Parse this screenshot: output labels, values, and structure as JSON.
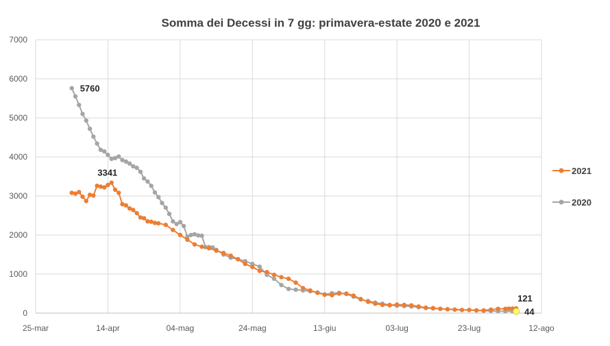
{
  "chart_data": {
    "type": "line",
    "title": "Somma dei Decessi in 7 gg: primavera-estate 2020 e 2021",
    "xlabel": "",
    "ylabel": "",
    "x_ticks": [
      "25-mar",
      "14-apr",
      "04-mag",
      "24-mag",
      "13-giu",
      "03-lug",
      "23-lug",
      "12-ago"
    ],
    "y_ticks": [
      0,
      1000,
      2000,
      3000,
      4000,
      5000,
      6000,
      7000
    ],
    "ylim": [
      0,
      7000
    ],
    "grid": "vertical and horizontal",
    "legend_position": "right",
    "x_unit": "day offset from 25-mar (tick every 20 days)",
    "xlim": [
      0,
      140
    ],
    "series": [
      {
        "name": "2021",
        "color": "#ED7D31",
        "x": [
          10,
          11,
          12,
          13,
          14,
          15,
          16,
          17,
          18,
          19,
          20,
          21,
          22,
          23,
          24,
          25,
          26,
          27,
          28,
          29,
          30,
          31,
          32,
          33,
          34,
          36,
          38,
          40,
          42,
          44,
          46,
          48,
          50,
          52,
          54,
          56,
          58,
          60,
          62,
          64,
          66,
          68,
          70,
          72,
          74,
          76,
          78,
          80,
          82,
          84,
          86,
          88,
          90,
          92,
          94,
          96,
          98,
          100,
          102,
          104,
          106,
          108,
          110,
          112,
          114,
          116,
          118,
          120,
          122,
          124,
          126,
          128,
          130,
          131,
          132,
          133
        ],
        "y": [
          3080,
          3060,
          3100,
          2980,
          2870,
          3030,
          3010,
          3260,
          3240,
          3220,
          3280,
          3341,
          3160,
          3080,
          2790,
          2760,
          2680,
          2640,
          2560,
          2450,
          2430,
          2350,
          2340,
          2310,
          2300,
          2260,
          2130,
          2000,
          1880,
          1760,
          1700,
          1660,
          1600,
          1540,
          1470,
          1380,
          1260,
          1180,
          1080,
          1050,
          980,
          920,
          880,
          780,
          640,
          580,
          520,
          470,
          460,
          500,
          500,
          450,
          360,
          290,
          240,
          210,
          200,
          220,
          210,
          200,
          170,
          140,
          130,
          110,
          100,
          90,
          80,
          80,
          70,
          70,
          90,
          110,
          110,
          115,
          118,
          121
        ]
      },
      {
        "name": "2020",
        "color": "#A5A5A5",
        "x": [
          10,
          11,
          12,
          13,
          14,
          15,
          16,
          17,
          18,
          19,
          20,
          21,
          22,
          23,
          24,
          25,
          26,
          27,
          28,
          29,
          30,
          31,
          32,
          33,
          34,
          35,
          36,
          37,
          38,
          39,
          40,
          41,
          42,
          43,
          44,
          45,
          46,
          47,
          48,
          49,
          50,
          52,
          54,
          56,
          58,
          60,
          62,
          64,
          66,
          68,
          70,
          72,
          74,
          76,
          78,
          80,
          82,
          84,
          86,
          88,
          90,
          92,
          94,
          96,
          98,
          100,
          102,
          104,
          106,
          108,
          110,
          112,
          114,
          116,
          118,
          120,
          122,
          124,
          126,
          128,
          130,
          132,
          133
        ],
        "y": [
          5760,
          5550,
          5330,
          5100,
          4930,
          4720,
          4520,
          4340,
          4180,
          4140,
          4050,
          3950,
          3970,
          4010,
          3920,
          3880,
          3830,
          3760,
          3720,
          3620,
          3450,
          3370,
          3260,
          3090,
          2970,
          2820,
          2700,
          2540,
          2350,
          2280,
          2330,
          2230,
          1960,
          2000,
          2020,
          1990,
          1980,
          1690,
          1690,
          1680,
          1620,
          1500,
          1420,
          1380,
          1330,
          1260,
          1190,
          980,
          880,
          720,
          620,
          600,
          580,
          560,
          530,
          480,
          510,
          520,
          490,
          420,
          350,
          310,
          270,
          240,
          210,
          190,
          180,
          170,
          150,
          130,
          120,
          110,
          100,
          90,
          80,
          80,
          70,
          60,
          55,
          50,
          48,
          45,
          44
        ]
      }
    ],
    "annotations": [
      {
        "text": "5760",
        "series": "2020",
        "x": 10,
        "y": 5760
      },
      {
        "text": "3341",
        "series": "2021",
        "x": 21,
        "y": 3341
      },
      {
        "text": "121",
        "series": "2021",
        "x": 133,
        "y": 121
      },
      {
        "text": "44",
        "series": "2020",
        "x": 133,
        "y": 44
      }
    ]
  }
}
